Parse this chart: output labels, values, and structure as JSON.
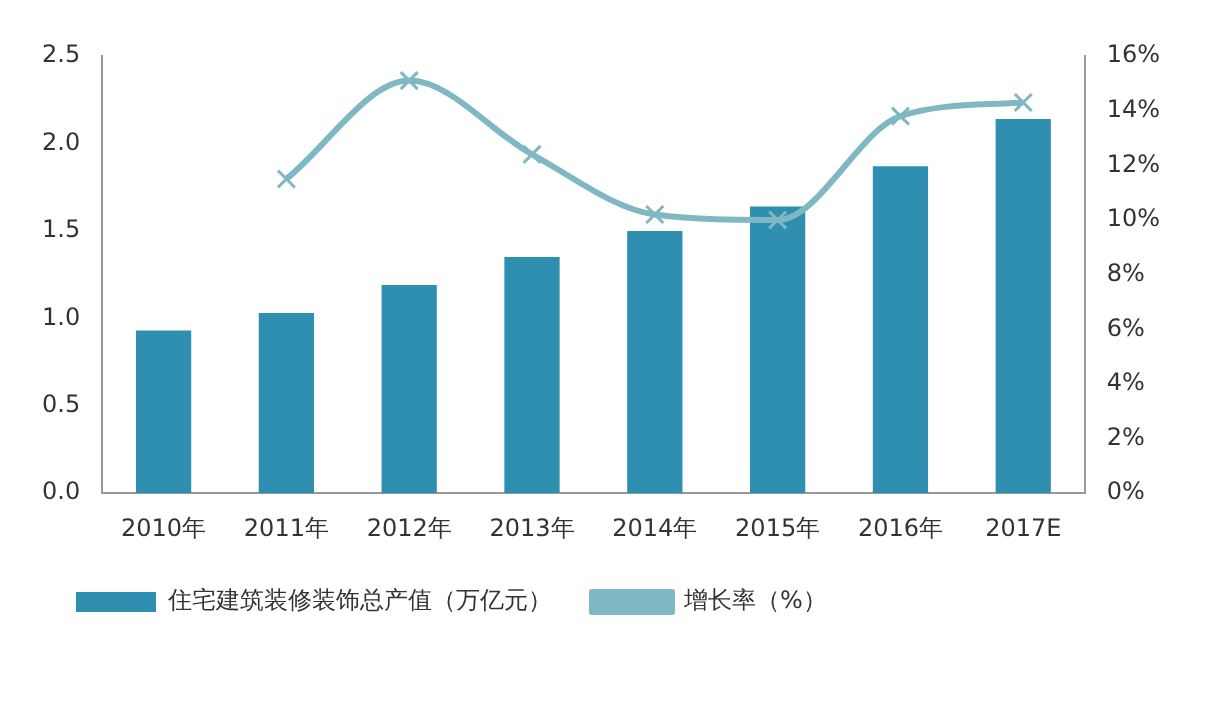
{
  "chart_data": {
    "type": "bar",
    "categories": [
      "2010年",
      "2011年",
      "2012年",
      "2013年",
      "2014年",
      "2015年",
      "2016年",
      "2017E"
    ],
    "series": [
      {
        "name": "住宅建筑装修装饰总产值（万亿元）",
        "color": "#2e8fb0",
        "values": [
          0.93,
          1.03,
          1.19,
          1.35,
          1.5,
          1.64,
          1.87,
          2.14
        ]
      },
      {
        "name": "增长率（%）",
        "type": "line",
        "axis": "y2",
        "color": "#7fb8c2",
        "marker": "cross",
        "values": [
          null,
          11.5,
          15.1,
          12.4,
          10.2,
          10.0,
          13.8,
          14.3
        ]
      }
    ],
    "ylim": [
      0,
      2.5
    ],
    "yticks": [
      {
        "value": 0,
        "label": "0.0"
      },
      {
        "value": 0.5,
        "label": "0.5"
      },
      {
        "value": 1,
        "label": "1.0"
      },
      {
        "value": 1.5,
        "label": "1.5"
      },
      {
        "value": 2,
        "label": "2.0"
      },
      {
        "value": 2.5,
        "label": "2.5"
      }
    ],
    "y2lim": [
      0,
      16
    ],
    "y2ticks": [
      {
        "value": 0,
        "label": "0%"
      },
      {
        "value": 2,
        "label": "2%"
      },
      {
        "value": 4,
        "label": "4%"
      },
      {
        "value": 6,
        "label": "6%"
      },
      {
        "value": 8,
        "label": "8%"
      },
      {
        "value": 10,
        "label": "10%"
      },
      {
        "value": 12,
        "label": "12%"
      },
      {
        "value": 14,
        "label": "14%"
      },
      {
        "value": 16,
        "label": "16%"
      }
    ],
    "grid": false,
    "legend": "bottom"
  }
}
